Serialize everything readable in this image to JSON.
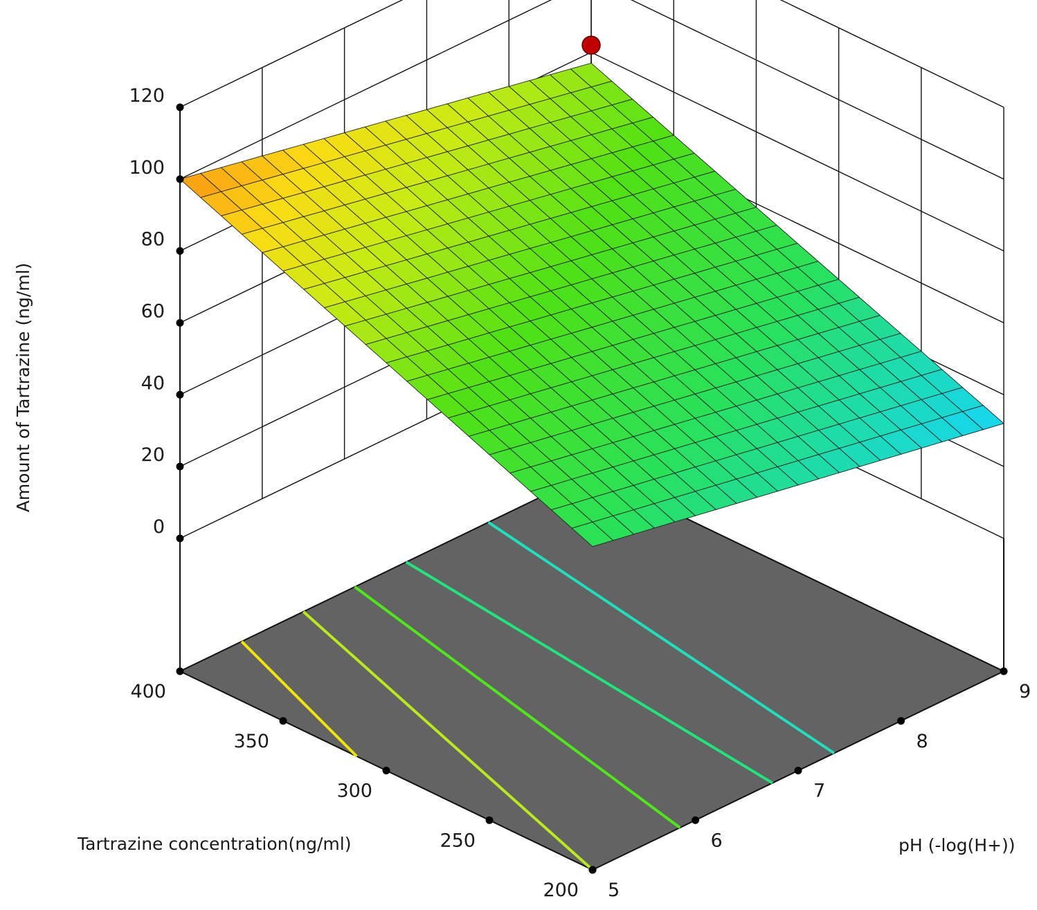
{
  "chart_data": {
    "type": "surface3d",
    "title": "",
    "axes": {
      "x": {
        "label": "pH (-log(H+))",
        "ticks": [
          5,
          6,
          7,
          8,
          9
        ],
        "range": [
          5,
          9
        ]
      },
      "y": {
        "label": "Tartrazine concentration(ng/ml)",
        "ticks": [
          200,
          250,
          300,
          350,
          400
        ],
        "range": [
          200,
          400
        ]
      },
      "z": {
        "label": "Amount of Tartrazine (ng/ml)",
        "ticks": [
          0,
          20,
          40,
          60,
          80,
          100,
          120
        ],
        "range": [
          0,
          120
        ]
      }
    },
    "surface": {
      "model": "linear",
      "corners": [
        {
          "ph": 5,
          "conc": 200,
          "amount": 53
        },
        {
          "ph": 9,
          "conc": 200,
          "amount": 32
        },
        {
          "ph": 5,
          "conc": 400,
          "amount": 100
        },
        {
          "ph": 9,
          "conc": 400,
          "amount": 77
        }
      ],
      "grid_divisions": 20,
      "colormap": "rainbow"
    },
    "design_point": {
      "ph": 9,
      "conc": 400,
      "amount": 82,
      "color": "#c00000"
    },
    "floor": {
      "color": "#636363",
      "contours": [
        {
          "ph_at_conc_400": 5.6,
          "ph_at_conc_200": 4.2,
          "color": "#f2e600"
        },
        {
          "ph_at_conc_400": 6.2,
          "ph_at_conc_200": 5.0,
          "color": "#b8ea1c"
        },
        {
          "ph_at_conc_400": 6.7,
          "ph_at_conc_200": 5.85,
          "color": "#4ee81a"
        },
        {
          "ph_at_conc_400": 7.2,
          "ph_at_conc_200": 6.75,
          "color": "#1ee57c"
        },
        {
          "ph_at_conc_400": 8.0,
          "ph_at_conc_200": 7.35,
          "color": "#1fe0bd"
        }
      ]
    },
    "grid": true
  }
}
